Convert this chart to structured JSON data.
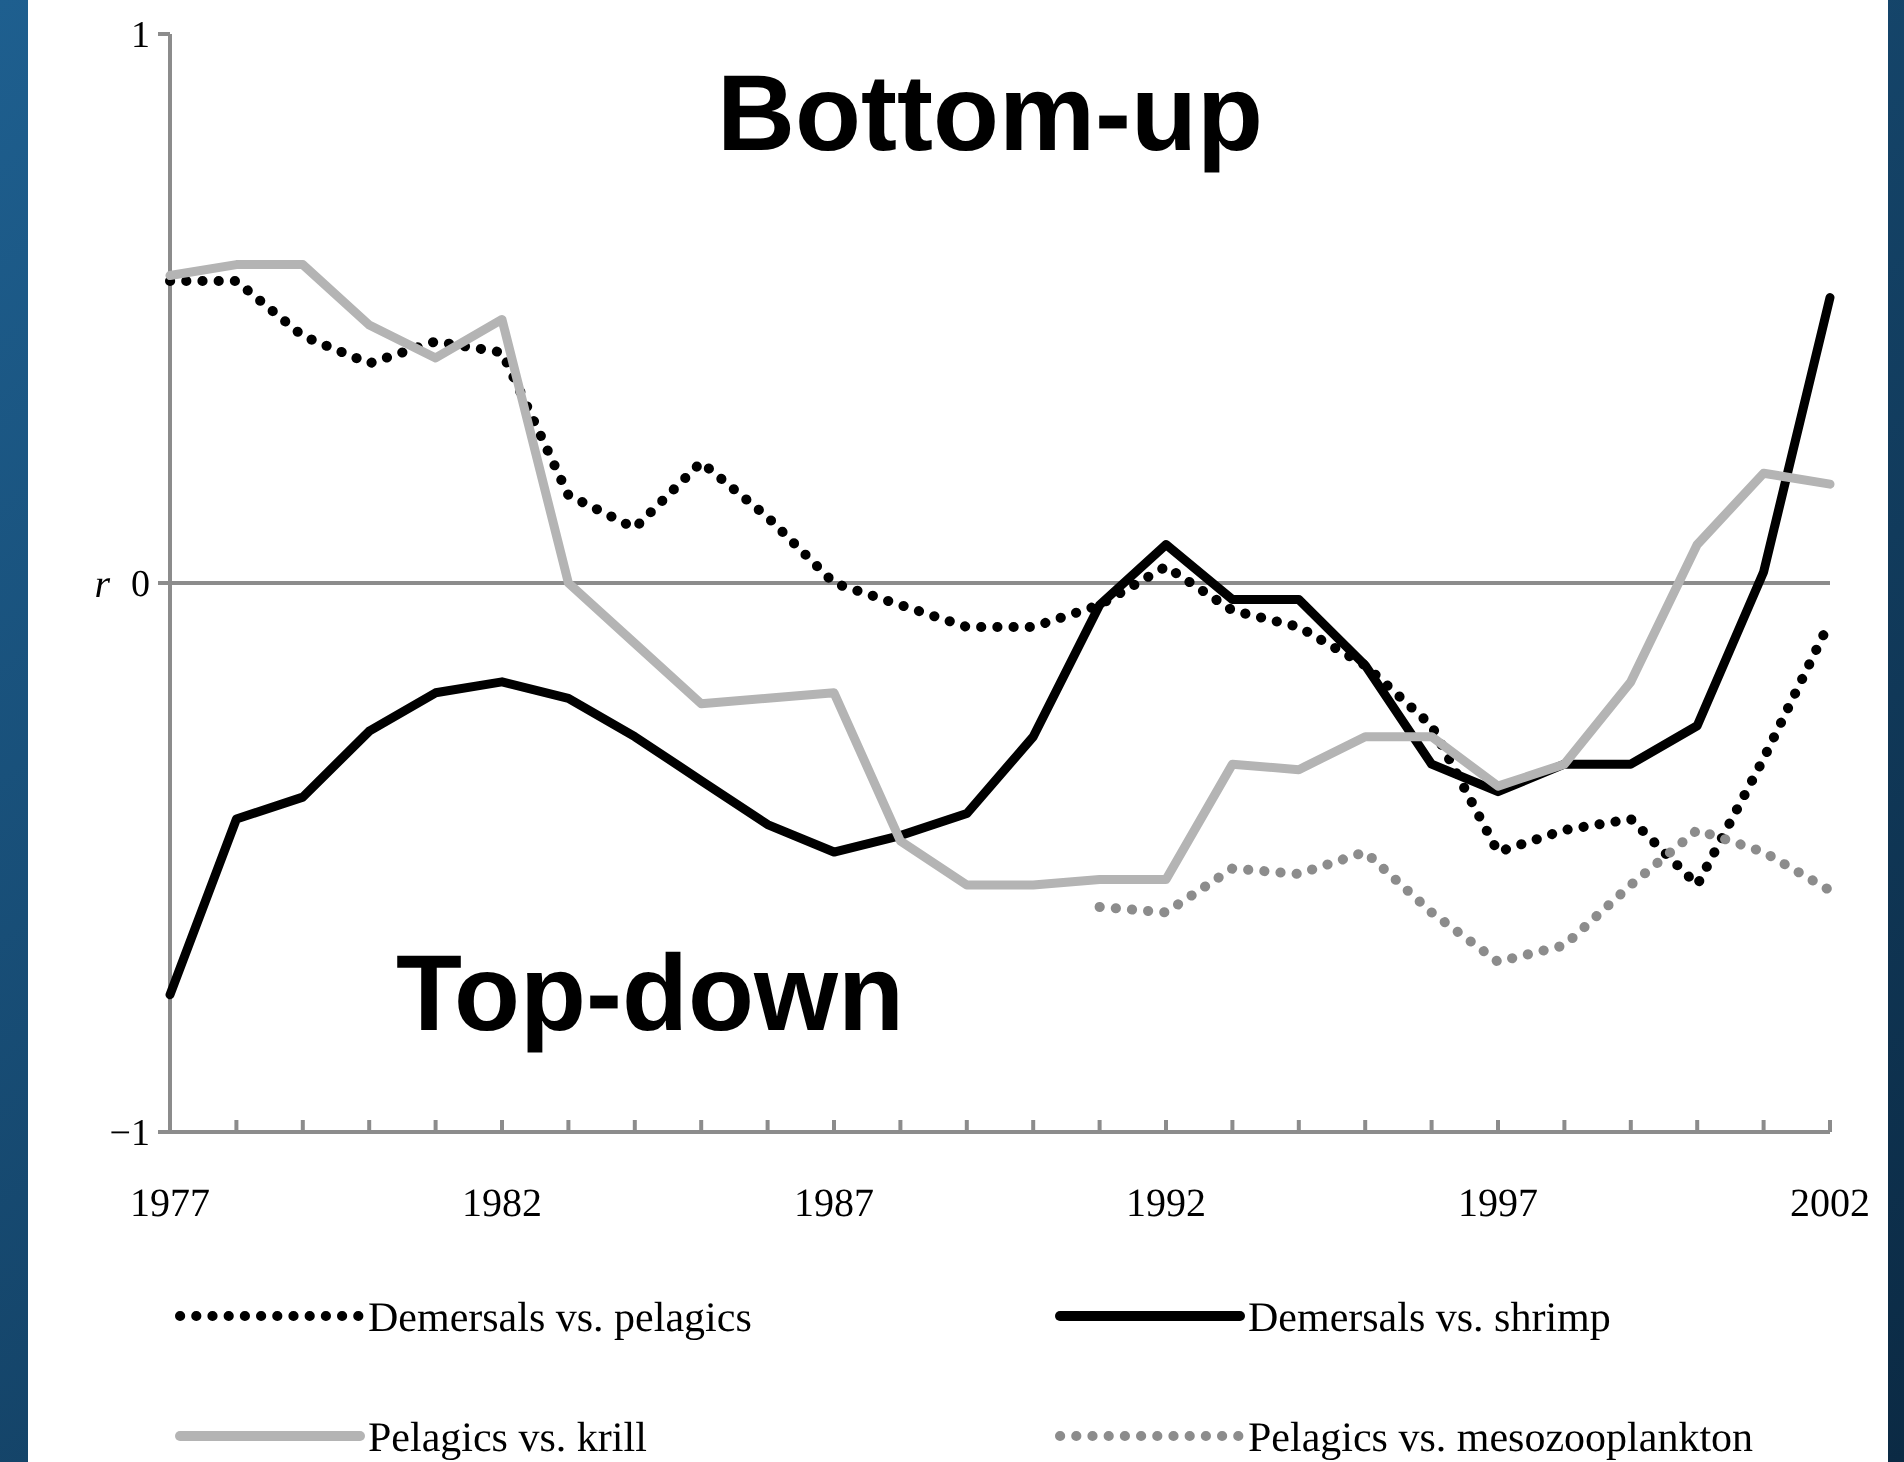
{
  "chart_data": {
    "type": "line",
    "ylabel": "r",
    "annotations": [
      "Bottom-up",
      "Top-down"
    ],
    "x": [
      1977,
      1978,
      1979,
      1980,
      1981,
      1982,
      1983,
      1984,
      1985,
      1986,
      1987,
      1988,
      1989,
      1990,
      1991,
      1992,
      1993,
      1994,
      1995,
      1996,
      1997,
      1998,
      1999,
      2000,
      2001,
      2002
    ],
    "xlim": [
      1977,
      2002
    ],
    "ylim": [
      -1,
      1
    ],
    "yticks": [
      {
        "value": -1,
        "label": "−1"
      },
      0,
      1
    ],
    "xticks": [
      1977,
      {
        "value": 1978,
        "label": null
      },
      {
        "value": 1979,
        "label": null
      },
      {
        "value": 1980,
        "label": null
      },
      {
        "value": 1981,
        "label": null
      },
      1982,
      {
        "value": 1983,
        "label": null
      },
      {
        "value": 1984,
        "label": null
      },
      {
        "value": 1985,
        "label": null
      },
      {
        "value": 1986,
        "label": null
      },
      1987,
      {
        "value": 1988,
        "label": null
      },
      {
        "value": 1989,
        "label": null
      },
      {
        "value": 1990,
        "label": null
      },
      {
        "value": 1991,
        "label": null
      },
      1992,
      {
        "value": 1993,
        "label": null
      },
      {
        "value": 1994,
        "label": null
      },
      {
        "value": 1995,
        "label": null
      },
      {
        "value": 1996,
        "label": null
      },
      1997,
      {
        "value": 1998,
        "label": null
      },
      {
        "value": 1999,
        "label": null
      },
      {
        "value": 2000,
        "label": null
      },
      {
        "value": 2001,
        "label": null
      },
      2002
    ],
    "ref_lines": [
      {
        "axis": "y",
        "value": 0,
        "color": "#8c8c8c"
      }
    ],
    "legend": "bottom",
    "grid": false,
    "series": [
      {
        "name": "Demersals vs. pelagics",
        "color": "#000000",
        "line_style": "dotted",
        "values": [
          0.55,
          0.55,
          0.45,
          0.4,
          0.44,
          0.42,
          0.16,
          0.1,
          0.22,
          0.12,
          0.0,
          -0.04,
          -0.08,
          -0.08,
          -0.04,
          0.03,
          -0.05,
          -0.08,
          -0.15,
          -0.26,
          -0.49,
          -0.45,
          -0.43,
          -0.55,
          -0.32,
          -0.07
        ]
      },
      {
        "name": "Demersals vs. shrimp",
        "color": "#000000",
        "line_style": "solid",
        "values": [
          -0.75,
          -0.43,
          -0.39,
          -0.27,
          -0.2,
          -0.18,
          -0.21,
          -0.28,
          -0.36,
          -0.44,
          -0.49,
          -0.46,
          -0.42,
          -0.28,
          -0.04,
          0.07,
          -0.03,
          -0.03,
          -0.15,
          -0.33,
          -0.38,
          -0.33,
          -0.33,
          -0.26,
          0.02,
          0.52
        ]
      },
      {
        "name": "Pelagics vs. krill",
        "color": "#b4b4b4",
        "line_style": "solid",
        "values": [
          0.56,
          0.58,
          0.58,
          0.47,
          0.41,
          0.48,
          0.0,
          -0.11,
          -0.22,
          -0.21,
          -0.2,
          -0.47,
          -0.55,
          -0.55,
          -0.54,
          -0.54,
          -0.33,
          -0.34,
          -0.28,
          -0.28,
          -0.37,
          -0.33,
          -0.18,
          0.07,
          0.2,
          0.18
        ]
      },
      {
        "name": "Pelagics vs. mesozooplankton",
        "color": "#8c8c8c",
        "line_style": "dotted",
        "values": [
          null,
          null,
          null,
          null,
          null,
          null,
          null,
          null,
          null,
          null,
          null,
          null,
          null,
          null,
          -0.59,
          -0.6,
          -0.52,
          -0.53,
          -0.49,
          -0.6,
          -0.69,
          -0.66,
          -0.55,
          -0.45,
          -0.49,
          -0.56
        ]
      }
    ]
  }
}
